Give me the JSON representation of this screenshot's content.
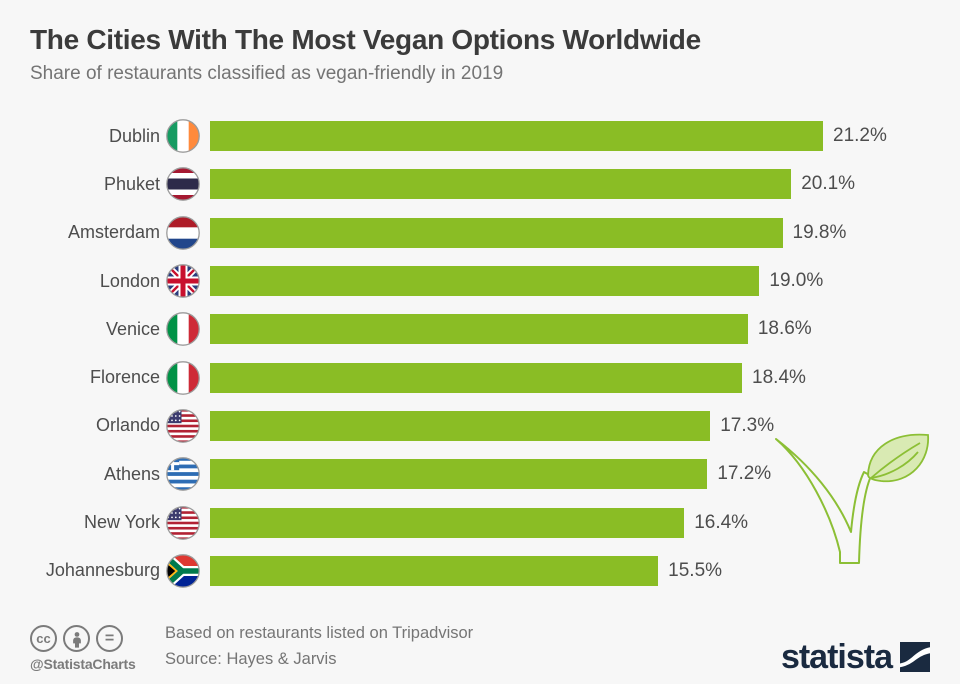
{
  "title": "The Cities With The Most Vegan Options Worldwide",
  "subtitle": "Share of restaurants classified as vegan-friendly in 2019",
  "chart_data": {
    "type": "bar",
    "orientation": "horizontal",
    "title": "The Cities With The Most Vegan Options Worldwide",
    "xlabel": "",
    "ylabel": "",
    "xlim": [
      0,
      21.2
    ],
    "grid": false,
    "legend": false,
    "bar_color": "#8abd25",
    "categories": [
      "Dublin",
      "Phuket",
      "Amsterdam",
      "London",
      "Venice",
      "Florence",
      "Orlando",
      "Athens",
      "New York",
      "Johannesburg"
    ],
    "values": [
      21.2,
      20.1,
      19.8,
      19.0,
      18.6,
      18.4,
      17.3,
      17.2,
      16.4,
      15.5
    ],
    "value_labels": [
      "21.2%",
      "20.1%",
      "19.8%",
      "19.0%",
      "18.6%",
      "18.4%",
      "17.3%",
      "17.2%",
      "16.4%",
      "15.5%"
    ],
    "flags": [
      "ireland",
      "thailand",
      "netherlands",
      "united-kingdom",
      "italy",
      "italy",
      "united-states",
      "greece",
      "united-states",
      "south-africa"
    ]
  },
  "footer": {
    "cc_glyph": "cc",
    "equals_glyph": "=",
    "handle": "@StatistaCharts",
    "note": "Based on restaurants listed on Tripadvisor",
    "source": "Source: Hayes & Jarvis",
    "brand": "statista"
  },
  "colors": {
    "background": "#f7f7f7",
    "bar_green": "#8abd25",
    "title_text": "#3b3b3b",
    "subtitle_text": "#747474",
    "label_text": "#4d4d4d",
    "footer_text": "#757575",
    "brand_navy": "#1a2a40",
    "leaf_stroke": "#8cbf35",
    "leaf_fill": "#d9eab3"
  }
}
